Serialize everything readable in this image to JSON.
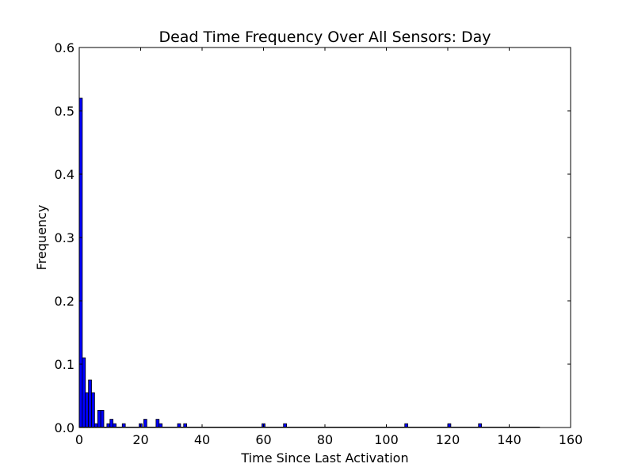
{
  "chart_data": {
    "type": "bar",
    "title": "Dead Time Frequency Over All Sensors: Day",
    "xlabel": "Time Since Last Activation",
    "ylabel": "Frequency",
    "xlim": [
      0,
      160
    ],
    "ylim": [
      0,
      0.6
    ],
    "xticks": [
      "0",
      "20",
      "40",
      "60",
      "80",
      "100",
      "120",
      "140",
      "160"
    ],
    "yticks": [
      "0.0",
      "0.1",
      "0.2",
      "0.3",
      "0.4",
      "0.5",
      "0.6"
    ],
    "grid": false,
    "bar_color": "#0000ff",
    "edge_color": "#000000",
    "bin_width": 1.0,
    "bins": [
      {
        "x": 0.0,
        "value": 0.52
      },
      {
        "x": 1.0,
        "value": 0.11
      },
      {
        "x": 2.0,
        "value": 0.055
      },
      {
        "x": 3.0,
        "value": 0.075
      },
      {
        "x": 4.0,
        "value": 0.055
      },
      {
        "x": 5.0,
        "value": 0.006
      },
      {
        "x": 6.0,
        "value": 0.027
      },
      {
        "x": 7.0,
        "value": 0.027
      },
      {
        "x": 9.0,
        "value": 0.006
      },
      {
        "x": 10.0,
        "value": 0.013
      },
      {
        "x": 11.0,
        "value": 0.006
      },
      {
        "x": 14.0,
        "value": 0.006
      },
      {
        "x": 19.5,
        "value": 0.006
      },
      {
        "x": 21.0,
        "value": 0.013
      },
      {
        "x": 25.0,
        "value": 0.013
      },
      {
        "x": 26.0,
        "value": 0.006
      },
      {
        "x": 32.0,
        "value": 0.006
      },
      {
        "x": 34.0,
        "value": 0.006
      },
      {
        "x": 59.5,
        "value": 0.006
      },
      {
        "x": 66.5,
        "value": 0.006
      },
      {
        "x": 106.0,
        "value": 0.006
      },
      {
        "x": 120.0,
        "value": 0.006
      },
      {
        "x": 130.0,
        "value": 0.006
      }
    ],
    "baseline_end": 150
  }
}
